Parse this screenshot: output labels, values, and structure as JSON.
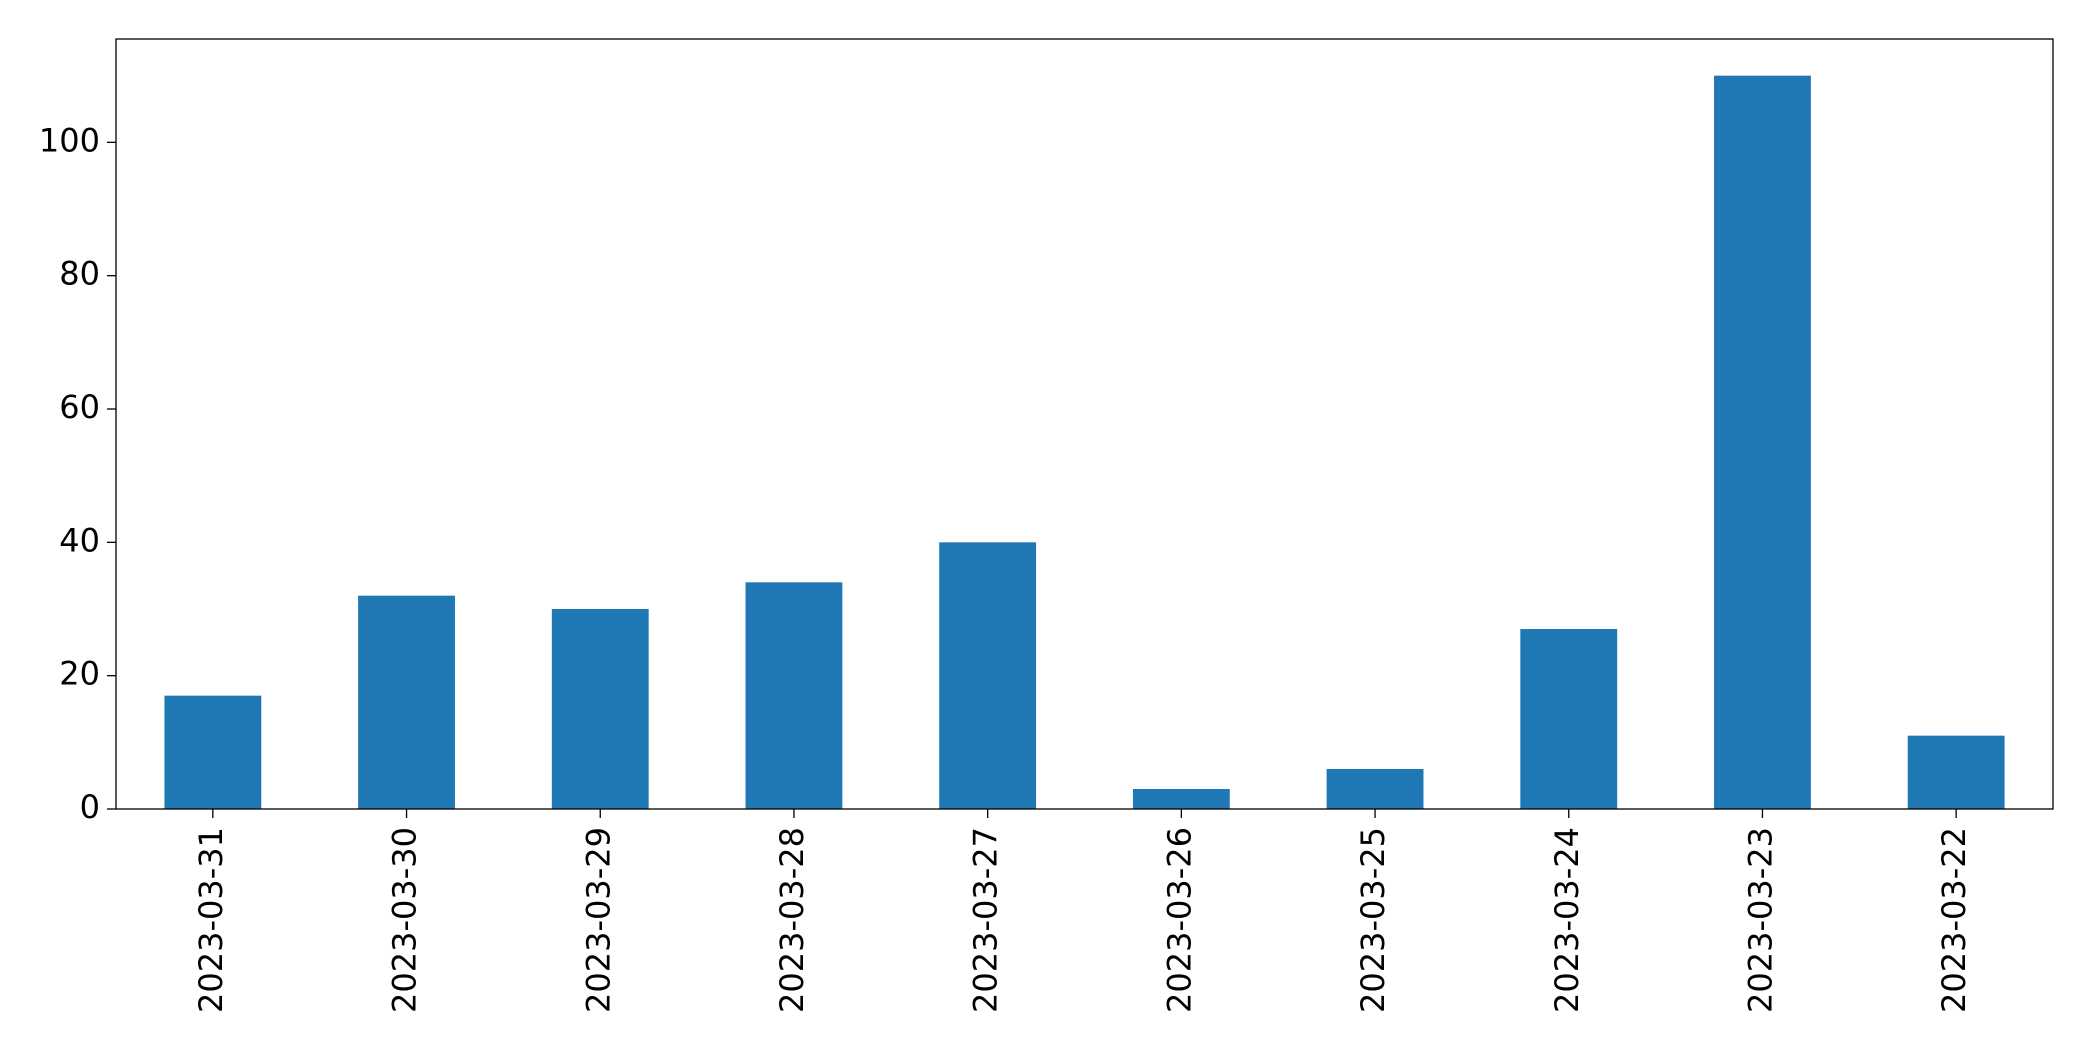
{
  "chart_data": {
    "type": "bar",
    "categories": [
      "2023-03-31",
      "2023-03-30",
      "2023-03-29",
      "2023-03-28",
      "2023-03-27",
      "2023-03-26",
      "2023-03-25",
      "2023-03-24",
      "2023-03-23",
      "2023-03-22"
    ],
    "values": [
      17,
      32,
      30,
      34,
      40,
      3,
      6,
      27,
      110,
      11
    ],
    "color": "#1f77b4",
    "ylim": [
      0,
      115.5
    ],
    "yticks": [
      0,
      20,
      40,
      60,
      80,
      100
    ],
    "grid": false
  }
}
